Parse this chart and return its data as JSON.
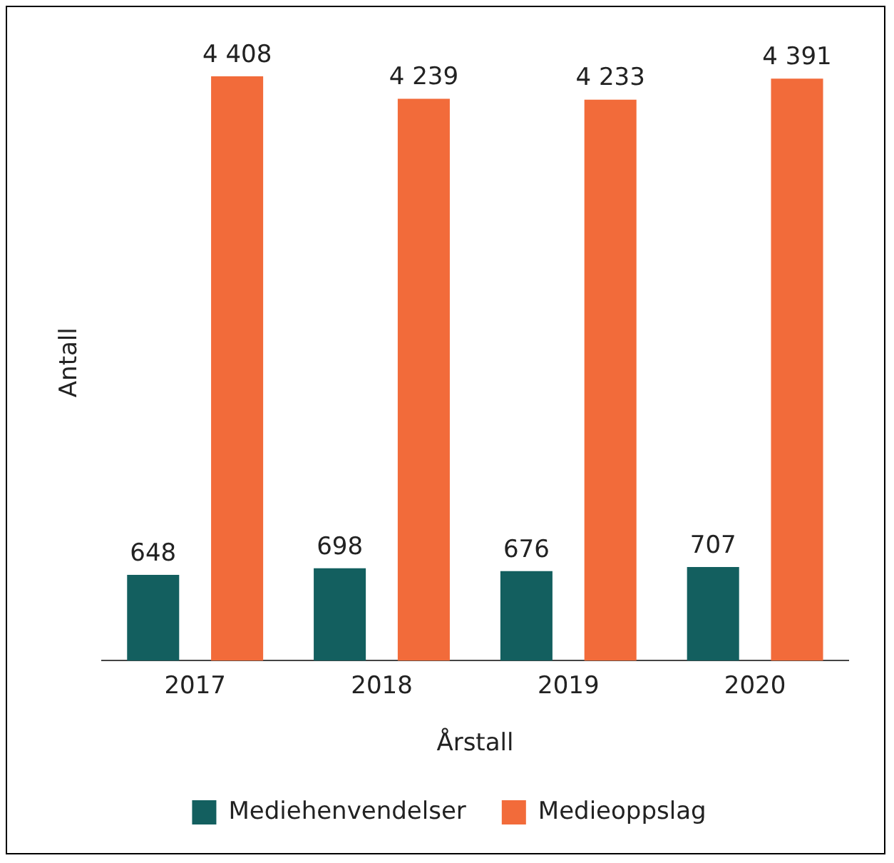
{
  "chart_data": {
    "type": "bar",
    "xlabel": "Årstall",
    "ylabel": "Antall",
    "categories": [
      "2017",
      "2018",
      "2019",
      "2020"
    ],
    "series": [
      {
        "name": "Mediehenvendelser",
        "color": "#135f5f",
        "values": [
          648,
          698,
          676,
          707
        ],
        "value_labels": [
          "648",
          "698",
          "676",
          "707"
        ]
      },
      {
        "name": "Medieoppslag",
        "color": "#f26b3a",
        "values": [
          4408,
          4239,
          4233,
          4391
        ],
        "value_labels": [
          "4 408",
          "4 239",
          "4 233",
          "4 391"
        ]
      }
    ],
    "legend": "bottom",
    "grid": false
  }
}
